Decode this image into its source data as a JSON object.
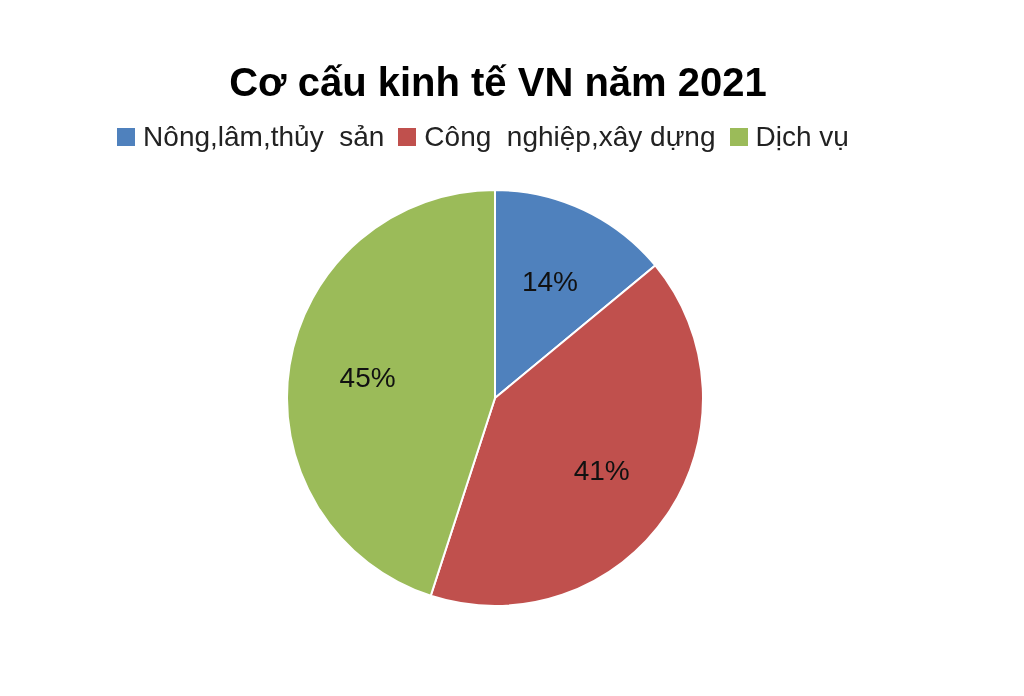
{
  "chart_data": {
    "type": "pie",
    "title": "Cơ cấu kinh tế VN năm 2021",
    "categories": [
      "Nông,lâm,thủy  sản",
      "Công  nghiệp,xây dựng",
      "Dịch vụ"
    ],
    "values": [
      14,
      41,
      45
    ],
    "colors": [
      "#4f81bd",
      "#c0504d",
      "#9bbb59"
    ],
    "value_labels": [
      "14%",
      "41%",
      "45%"
    ],
    "legend": "top"
  }
}
